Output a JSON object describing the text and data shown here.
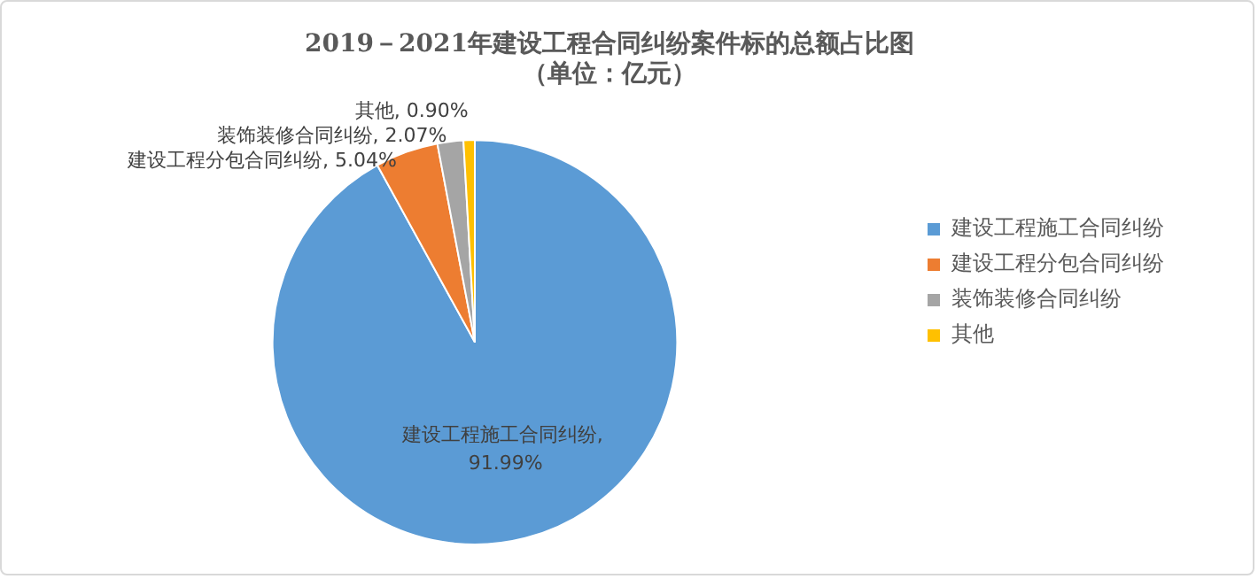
{
  "chart_data": {
    "type": "pie",
    "title": "2019－2021年建设工程合同纠纷案件标的总额占比图",
    "subtitle": "（单位：亿元）",
    "categories": [
      "建设工程施工合同纠纷",
      "建设工程分包合同纠纷",
      "装饰装修合同纠纷",
      "其他"
    ],
    "values": [
      91.99,
      5.04,
      2.07,
      0.9
    ],
    "colors": [
      "#5b9bd5",
      "#ed7d31",
      "#a5a5a5",
      "#ffc000"
    ],
    "value_labels": [
      "建设工程施工合同纠纷, 91.99%",
      "建设工程分包合同纠纷, 5.04%",
      "装饰装修合同纠纷, 2.07%",
      "其他, 0.90%"
    ],
    "legend": "right"
  }
}
